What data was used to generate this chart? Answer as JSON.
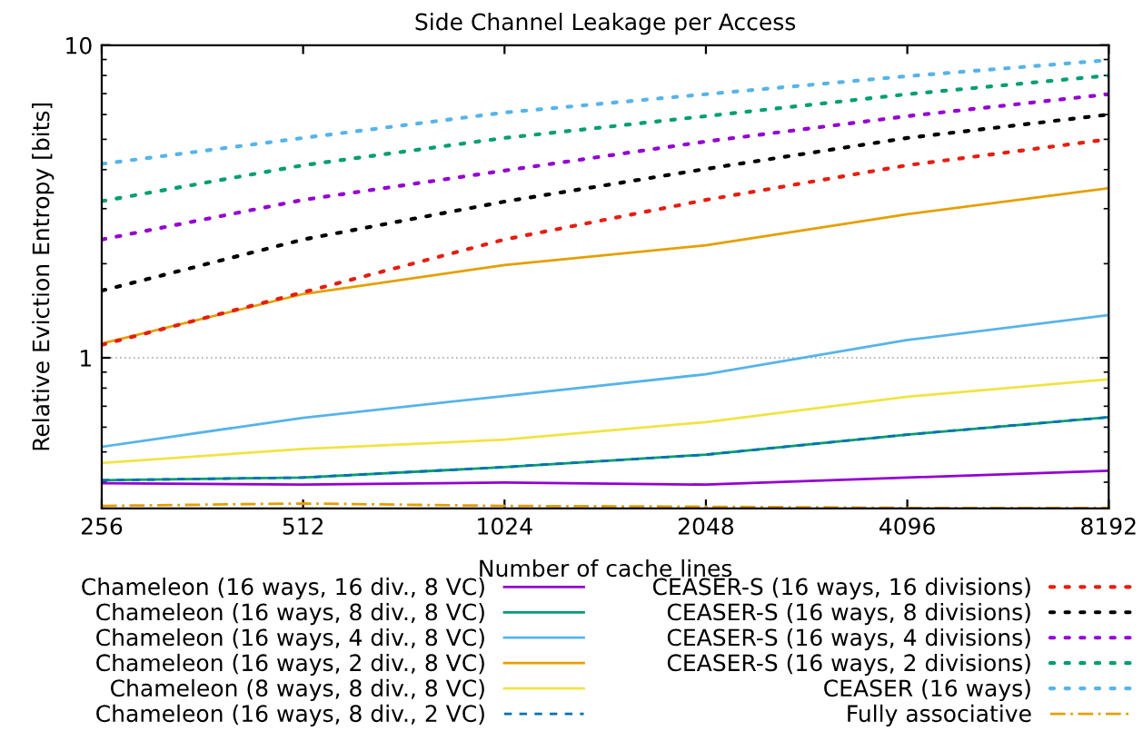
{
  "chart_data": {
    "type": "line",
    "title": "Side Channel Leakage per Access",
    "xlabel": "Number of cache lines",
    "ylabel": "Relative Eviction Entropy [bits]",
    "x": [
      256,
      512,
      1024,
      2048,
      4096,
      8192
    ],
    "series": [
      {
        "name": "Chameleon (16 ways, 16 div., 8 VC)",
        "color": "#9400d3",
        "line_style": "solid",
        "values": [
          0.397,
          0.393,
          0.399,
          0.393,
          0.414,
          0.435
        ]
      },
      {
        "name": "Chameleon (16 ways, 8 div., 8 VC)",
        "color": "#009e73",
        "line_style": "solid",
        "values": [
          0.406,
          0.414,
          0.447,
          0.49,
          0.568,
          0.646
        ]
      },
      {
        "name": "Chameleon (16 ways, 4 div., 8 VC)",
        "color": "#56b4e9",
        "line_style": "solid",
        "values": [
          0.519,
          0.643,
          0.755,
          0.886,
          1.14,
          1.37
        ]
      },
      {
        "name": "Chameleon (16 ways, 2 div., 8 VC)",
        "color": "#e69f00",
        "line_style": "solid",
        "values": [
          1.11,
          1.6,
          1.98,
          2.29,
          2.88,
          3.49
        ]
      },
      {
        "name": "Chameleon (8 ways, 8 div., 8 VC)",
        "color": "#f0e442",
        "line_style": "solid",
        "values": [
          0.461,
          0.511,
          0.547,
          0.623,
          0.751,
          0.854
        ]
      },
      {
        "name": "Chameleon (16 ways, 8 div., 2 VC)",
        "color": "#0072b2",
        "line_style": "dashed",
        "values": [
          0.406,
          0.414,
          0.447,
          0.49,
          0.568,
          0.646
        ]
      },
      {
        "name": "CEASER-S (16 ways, 16 divisions)",
        "color": "#e51e10",
        "line_style": "dotted",
        "values": [
          1.1,
          1.62,
          2.39,
          3.2,
          4.13,
          5.0
        ]
      },
      {
        "name": "CEASER-S (16 ways, 8 divisions)",
        "color": "#000000",
        "line_style": "dotted",
        "values": [
          1.64,
          2.39,
          3.16,
          4.02,
          5.05,
          6.0
        ]
      },
      {
        "name": "CEASER-S (16 ways, 4 divisions)",
        "color": "#9400d3",
        "line_style": "dotted",
        "values": [
          2.39,
          3.2,
          3.97,
          4.92,
          5.93,
          6.97
        ]
      },
      {
        "name": "CEASER-S (16 ways, 2 divisions)",
        "color": "#009e73",
        "line_style": "dotted",
        "values": [
          3.17,
          4.13,
          5.05,
          5.93,
          6.97,
          8.0
        ]
      },
      {
        "name": "CEASER (16 ways)",
        "color": "#56b4e9",
        "line_style": "dotted",
        "values": [
          4.17,
          5.05,
          6.09,
          6.97,
          7.96,
          8.96
        ]
      },
      {
        "name": "Fully associative",
        "color": "#e69f00",
        "line_style": "dashdot",
        "values": [
          0.336,
          0.342,
          0.336,
          0.334,
          0.331,
          0.331
        ]
      }
    ],
    "log": "xy",
    "xlim": [
      256,
      8192
    ],
    "xticks": [
      256,
      512,
      1024,
      2048,
      4096,
      8192
    ],
    "ylim": [
      0.33,
      10
    ],
    "yticks": [
      1,
      10
    ],
    "grid": "y",
    "legend": "bottom"
  }
}
